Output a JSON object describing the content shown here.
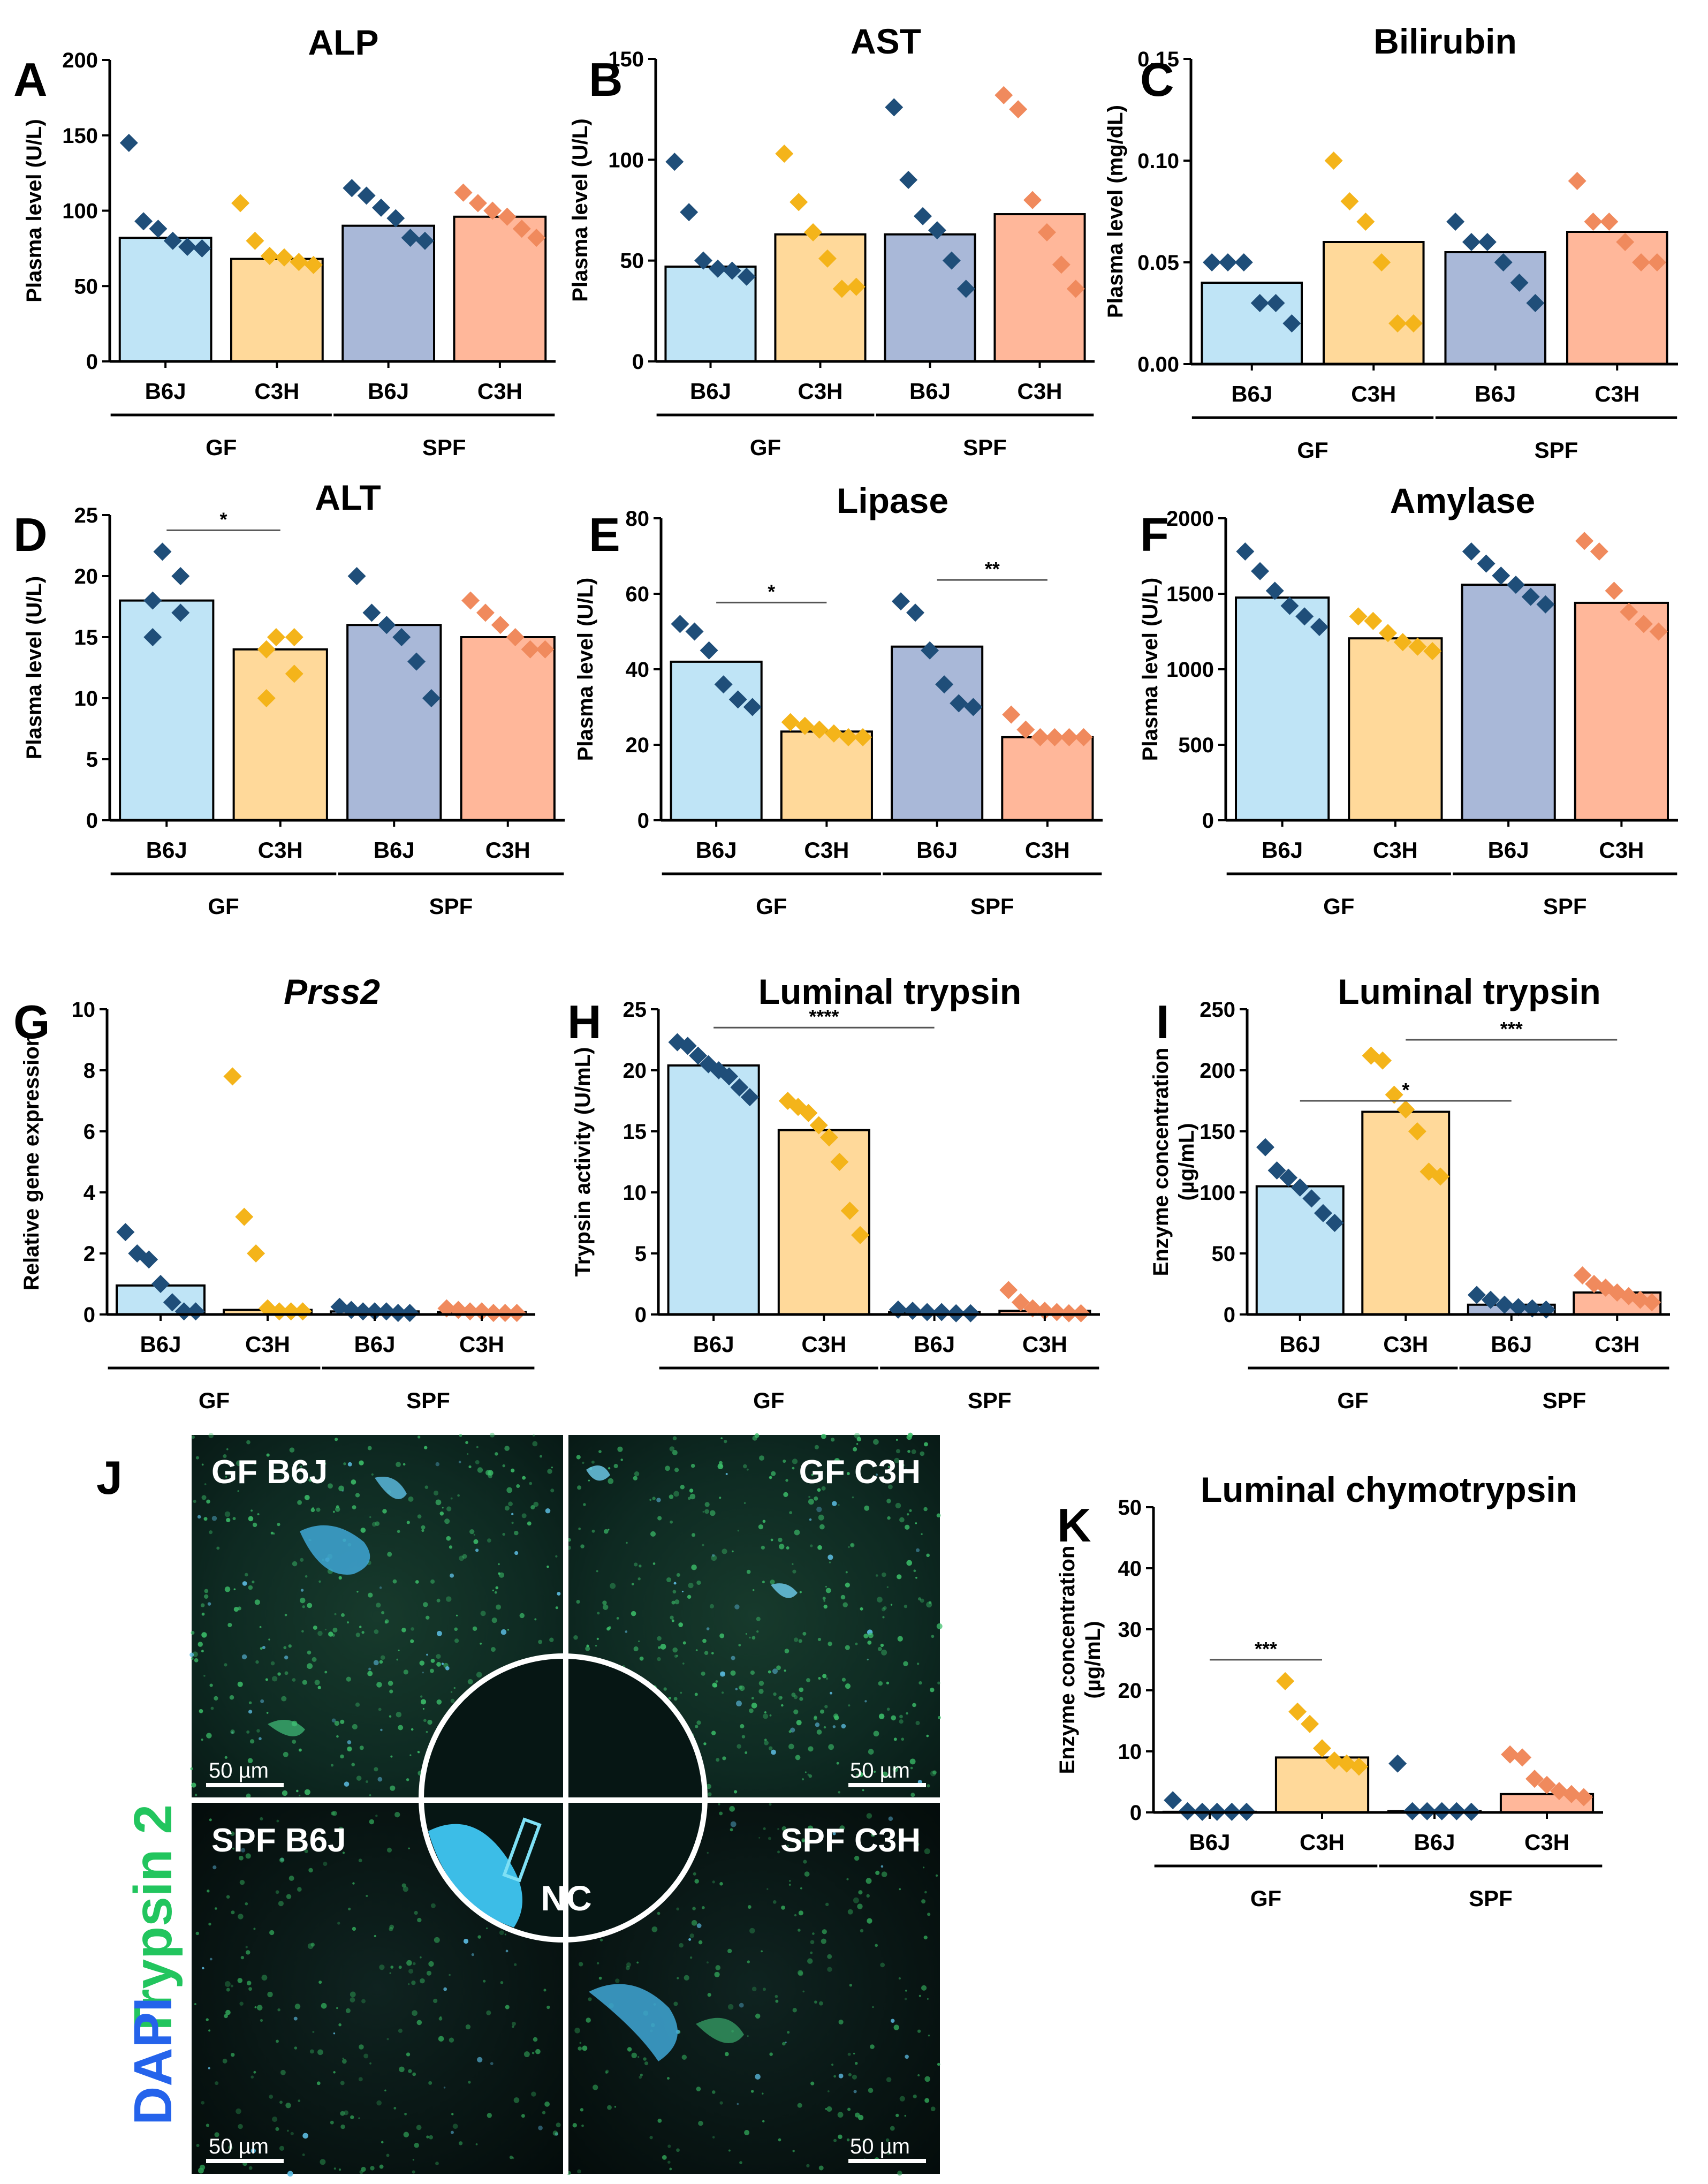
{
  "colors": {
    "gf_b6j_fill": "#bfe4f6",
    "gf_c3h_fill": "#ffd99a",
    "spf_b6j_fill": "#a9b8d8",
    "spf_c3h_fill": "#ffb79a",
    "b6j_marker": "#1f4e79",
    "gf_c3h_marker": "#f4b41a",
    "spf_c3h_marker": "#f08a5d",
    "trypsin_label": "#22c55e",
    "dapi_label": "#2563eb"
  },
  "panel_letters": {
    "A": "A",
    "B": "B",
    "C": "C",
    "D": "D",
    "E": "E",
    "F": "F",
    "G": "G",
    "H": "H",
    "I": "I",
    "J": "J",
    "K": "K"
  },
  "micrograph": {
    "panels": [
      {
        "label": "GF B6J",
        "scale": "50 µm"
      },
      {
        "label": "GF C3H",
        "scale": "50 µm"
      },
      {
        "label": "SPF B6J",
        "scale": "50 µm"
      },
      {
        "label": "SPF C3H",
        "scale": "50 µm"
      }
    ],
    "nc_label": "NC",
    "stain_trypsin": "Trypsin 2",
    "stain_dapi": "DAPI"
  },
  "chart_data": [
    {
      "id": "A",
      "type": "bar",
      "title": "ALP",
      "ylabel": "Plasma level (U/L)",
      "ylim": [
        0,
        200
      ],
      "yticks": [
        "0",
        "50",
        "100",
        "150",
        "200"
      ],
      "categories": [
        "B6J",
        "C3H",
        "B6J",
        "C3H"
      ],
      "groups": [
        "GF",
        "SPF"
      ],
      "values": [
        82,
        68,
        90,
        96
      ],
      "points": [
        [
          145,
          93,
          88,
          80,
          76,
          75
        ],
        [
          105,
          80,
          70,
          69,
          66,
          64
        ],
        [
          115,
          110,
          102,
          95,
          82,
          80
        ],
        [
          112,
          105,
          100,
          96,
          88,
          82
        ]
      ],
      "sig": []
    },
    {
      "id": "B",
      "type": "bar",
      "title": "AST",
      "ylabel": "Plasma level (U/L)",
      "ylim": [
        0,
        150
      ],
      "yticks": [
        "0",
        "50",
        "100",
        "150"
      ],
      "categories": [
        "B6J",
        "C3H",
        "B6J",
        "C3H"
      ],
      "groups": [
        "GF",
        "SPF"
      ],
      "values": [
        47,
        63,
        63,
        73
      ],
      "points": [
        [
          99,
          74,
          50,
          46,
          45,
          42
        ],
        [
          103,
          79,
          64,
          51,
          36,
          37
        ],
        [
          126,
          90,
          72,
          65,
          50,
          36
        ],
        [
          132,
          125,
          80,
          64,
          48,
          36
        ]
      ],
      "sig": []
    },
    {
      "id": "C",
      "type": "bar",
      "title": "Bilirubin",
      "ylabel": "Plasma level (mg/dL)",
      "ylim": [
        0,
        0.15
      ],
      "yticks": [
        "0.00",
        "0.05",
        "0.10",
        "0.15"
      ],
      "categories": [
        "B6J",
        "C3H",
        "B6J",
        "C3H"
      ],
      "groups": [
        "GF",
        "SPF"
      ],
      "values": [
        0.04,
        0.06,
        0.055,
        0.065
      ],
      "points": [
        [
          0.05,
          0.05,
          0.05,
          0.03,
          0.03,
          0.02
        ],
        [
          0.1,
          0.08,
          0.07,
          0.05,
          0.02,
          0.02
        ],
        [
          0.07,
          0.06,
          0.06,
          0.05,
          0.04,
          0.03
        ],
        [
          0.09,
          0.07,
          0.07,
          0.06,
          0.05,
          0.05
        ]
      ],
      "sig": []
    },
    {
      "id": "D",
      "type": "bar",
      "title": "ALT",
      "ylabel": "Plasma level (U/L)",
      "ylim": [
        0,
        25
      ],
      "yticks": [
        "0",
        "5",
        "10",
        "15",
        "20",
        "25"
      ],
      "categories": [
        "B6J",
        "C3H",
        "B6J",
        "C3H"
      ],
      "groups": [
        "GF",
        "SPF"
      ],
      "values": [
        18,
        14,
        16,
        15
      ],
      "points": [
        [
          22,
          20,
          18,
          17,
          15
        ],
        [
          15,
          15,
          14,
          12,
          10
        ],
        [
          20,
          17,
          16,
          15,
          13,
          10
        ],
        [
          18,
          17,
          16,
          15,
          14,
          14
        ]
      ],
      "sig": [
        {
          "from": 0,
          "to": 1,
          "label": "*"
        }
      ]
    },
    {
      "id": "E",
      "type": "bar",
      "title": "Lipase",
      "ylabel": "Plasma level (U/L)",
      "ylim": [
        0,
        80
      ],
      "yticks": [
        "0",
        "20",
        "40",
        "60",
        "80"
      ],
      "categories": [
        "B6J",
        "C3H",
        "B6J",
        "C3H"
      ],
      "groups": [
        "GF",
        "SPF"
      ],
      "values": [
        42,
        23.5,
        46,
        22
      ],
      "points": [
        [
          52,
          50,
          45,
          36,
          32,
          30
        ],
        [
          26,
          25,
          24,
          23,
          22,
          22
        ],
        [
          58,
          55,
          45,
          36,
          31,
          30
        ],
        [
          28,
          24,
          22,
          22,
          22,
          22
        ]
      ],
      "sig": [
        {
          "from": 0,
          "to": 1,
          "label": "*"
        },
        {
          "from": 2,
          "to": 3,
          "label": "**"
        }
      ]
    },
    {
      "id": "F",
      "type": "bar",
      "title": "Amylase",
      "ylabel": "Plasma level (U/L)",
      "ylim": [
        0,
        2000
      ],
      "yticks": [
        "0",
        "500",
        "1000",
        "1500",
        "2000"
      ],
      "categories": [
        "B6J",
        "C3H",
        "B6J",
        "C3H"
      ],
      "groups": [
        "GF",
        "SPF"
      ],
      "values": [
        1475,
        1205,
        1560,
        1440
      ],
      "points": [
        [
          1780,
          1650,
          1520,
          1420,
          1350,
          1280
        ],
        [
          1350,
          1320,
          1240,
          1180,
          1150,
          1120
        ],
        [
          1780,
          1700,
          1620,
          1560,
          1480,
          1430
        ],
        [
          1850,
          1780,
          1520,
          1380,
          1300,
          1250
        ]
      ],
      "sig": []
    },
    {
      "id": "G",
      "type": "bar",
      "title": "Prss2",
      "title_italic": true,
      "ylabel": "Relative gene expression",
      "ylim": [
        0,
        10
      ],
      "yticks": [
        "0",
        "2",
        "4",
        "6",
        "8",
        "10"
      ],
      "categories": [
        "B6J",
        "C3H",
        "B6J",
        "C3H"
      ],
      "groups": [
        "GF",
        "SPF"
      ],
      "values": [
        0.95,
        0.15,
        0.1,
        0.08
      ],
      "points": [
        [
          2.7,
          2.0,
          1.8,
          1.0,
          0.4,
          0.1,
          0.1
        ],
        [
          7.8,
          3.2,
          2.0,
          0.2,
          0.1,
          0.1,
          0.1
        ],
        [
          0.25,
          0.15,
          0.1,
          0.1,
          0.1,
          0.05,
          0.05
        ],
        [
          0.2,
          0.15,
          0.1,
          0.1,
          0.05,
          0.05,
          0.05
        ]
      ],
      "sig": []
    },
    {
      "id": "H",
      "type": "bar",
      "title": "Luminal trypsin",
      "ylabel": "Trypsin activity (U/mL)",
      "ylim": [
        0,
        25
      ],
      "yticks": [
        "0",
        "5",
        "10",
        "15",
        "20",
        "25"
      ],
      "categories": [
        "B6J",
        "C3H",
        "B6J",
        "C3H"
      ],
      "groups": [
        "GF",
        "SPF"
      ],
      "values": [
        20.4,
        15.1,
        0.2,
        0.3
      ],
      "points": [
        [
          22.3,
          22.0,
          21.2,
          20.5,
          20.0,
          19.5,
          18.6,
          17.8
        ],
        [
          17.5,
          17.0,
          16.5,
          15.5,
          14.5,
          12.5,
          8.5,
          6.5
        ],
        [
          0.4,
          0.3,
          0.2,
          0.2,
          0.1,
          0.1
        ],
        [
          2.0,
          1.0,
          0.5,
          0.3,
          0.2,
          0.1,
          0.1
        ]
      ],
      "sig": [
        {
          "from": 0,
          "to": 2,
          "label": "****"
        }
      ]
    },
    {
      "id": "I",
      "type": "bar",
      "title": "Luminal trypsin",
      "ylabel": "Enzyme concentration (µg/mL)",
      "ylim": [
        0,
        250
      ],
      "yticks": [
        "0",
        "50",
        "100",
        "150",
        "200",
        "250"
      ],
      "categories": [
        "B6J",
        "C3H",
        "B6J",
        "C3H"
      ],
      "groups": [
        "GF",
        "SPF"
      ],
      "values": [
        105,
        166,
        8,
        18
      ],
      "points": [
        [
          137,
          118,
          112,
          104,
          95,
          83,
          75
        ],
        [
          212,
          208,
          180,
          168,
          150,
          117,
          113
        ],
        [
          16,
          12,
          8,
          6,
          5,
          4
        ],
        [
          32,
          25,
          22,
          18,
          15,
          12,
          10
        ]
      ],
      "sig": [
        {
          "from": 0,
          "to": 2,
          "label": "*"
        },
        {
          "from": 1,
          "to": 3,
          "label": "***"
        }
      ]
    },
    {
      "id": "K",
      "type": "bar",
      "title": "Luminal chymotrypsin",
      "ylabel": "Enzyme concentration (µg/mL)",
      "ylim": [
        0,
        50
      ],
      "yticks": [
        "0",
        "10",
        "20",
        "30",
        "40",
        "50"
      ],
      "categories": [
        "B6J",
        "C3H",
        "B6J",
        "C3H"
      ],
      "groups": [
        "GF",
        "SPF"
      ],
      "values": [
        0.1,
        9,
        0.2,
        3
      ],
      "points": [
        [
          2.0,
          0.2,
          0.1,
          0.1,
          0.1,
          0.1
        ],
        [
          21.5,
          16.5,
          14.5,
          10.5,
          8.5,
          8.0,
          7.5
        ],
        [
          8.0,
          0.2,
          0.2,
          0.2,
          0.2,
          0.1
        ],
        [
          9.5,
          9.0,
          5.5,
          4.5,
          3.5,
          3.0,
          2.5
        ]
      ],
      "sig": [
        {
          "from": 0,
          "to": 1,
          "label": "***"
        }
      ]
    }
  ]
}
